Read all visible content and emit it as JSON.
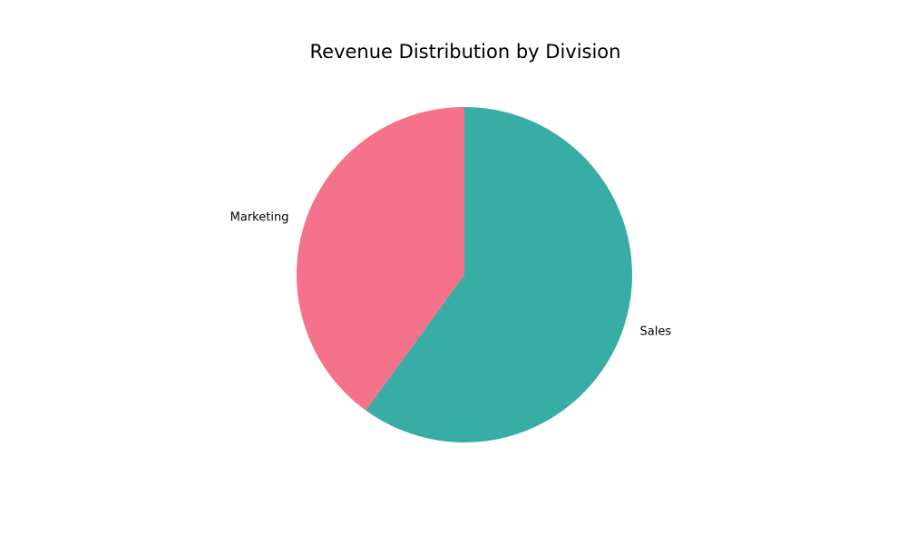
{
  "chart_data": {
    "type": "pie",
    "title": "Revenue Distribution by Division",
    "slices": [
      {
        "label": "Sales",
        "value": 60,
        "color": "#38ada5"
      },
      {
        "label": "Marketing",
        "value": 40,
        "color": "#f5738a"
      }
    ],
    "start_angle_deg": 90,
    "direction": "clockwise",
    "legend": "none"
  }
}
